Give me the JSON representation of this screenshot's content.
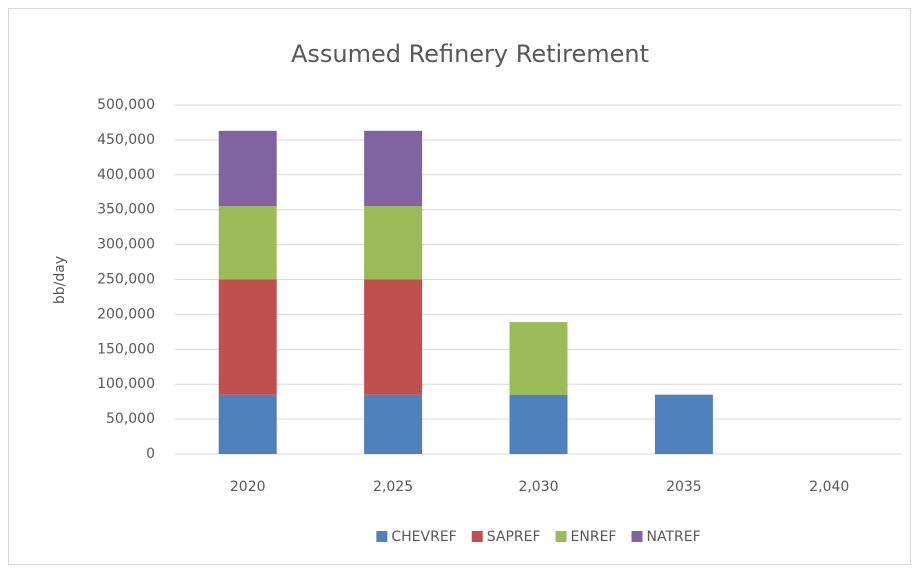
{
  "chart_data": {
    "type": "stacked_bar",
    "title": "Assumed Refinery Retirement",
    "y_label": "bb/day",
    "categories": [
      "2020",
      "2,025",
      "2,030",
      "2035",
      "2,040"
    ],
    "series": [
      {
        "name": "CHEVREF",
        "color": "#4f81bd",
        "values": [
          85000,
          85000,
          85000,
          85000,
          null
        ]
      },
      {
        "name": "SAPREF",
        "color": "#c0504d",
        "values": [
          165000,
          165000,
          null,
          null,
          null
        ]
      },
      {
        "name": "ENREF",
        "color": "#9bbb59",
        "values": [
          105000,
          105000,
          104000,
          null,
          null
        ]
      },
      {
        "name": "NATREF",
        "color": "#8064a2",
        "values": [
          108000,
          108000,
          null,
          null,
          null
        ]
      }
    ],
    "ylim": [
      0,
      500000
    ],
    "yticks": [
      0,
      {
        "value": 50000,
        "label": "50,000"
      },
      {
        "value": 100000,
        "label": "100,000"
      },
      {
        "value": 150000,
        "label": "150,000"
      },
      {
        "value": 200000,
        "label": "200,000"
      },
      {
        "value": 250000,
        "label": "250,000"
      },
      {
        "value": 300000,
        "label": "300,000"
      },
      {
        "value": 350000,
        "label": "350,000"
      },
      {
        "value": 400000,
        "label": "400,000"
      },
      {
        "value": 450000,
        "label": "450,000"
      },
      {
        "value": 500000,
        "label": "500,000"
      }
    ],
    "grid": true,
    "legend": "bottom"
  }
}
